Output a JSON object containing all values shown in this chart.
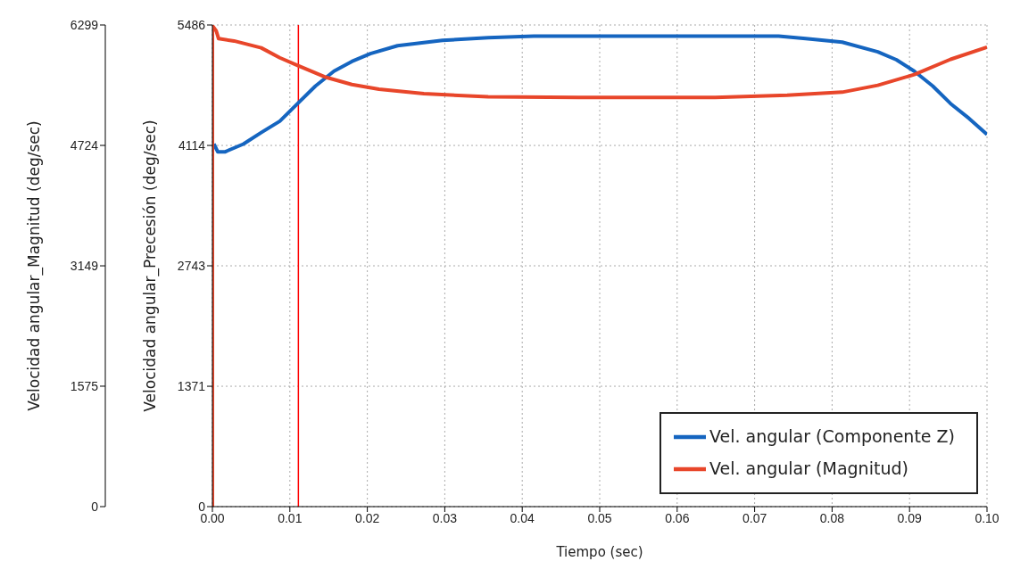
{
  "chart_data": {
    "type": "line",
    "xlabel": "Tiempo (sec)",
    "ylabel": "Velocidad angular_Magnitud (deg/sec)",
    "y2label": "Velocidad angular_Precesión (deg/sec)",
    "xlim": [
      0,
      0.1
    ],
    "xticks": [
      {
        "value": 0,
        "label": "0.00"
      },
      0.01,
      0.02,
      0.03,
      0.04,
      0.05,
      0.06,
      0.07,
      0.08,
      0.09,
      {
        "value": 0.1,
        "label": "0.10"
      }
    ],
    "ylim": [
      0,
      6299
    ],
    "yticks": [
      0,
      1575,
      3149,
      4724,
      6299
    ],
    "y2lim": [
      0,
      5486
    ],
    "y2ticks": [
      0,
      1371,
      2743,
      4114,
      5486
    ],
    "grid": true,
    "legend": "bottom right",
    "line_style": "solid",
    "marker": "none",
    "ref_lines": [
      {
        "axis": "x",
        "value": 0.0111,
        "color": "#ff0000"
      }
    ],
    "series": [
      {
        "name": "Vel. angular (Componente Z)",
        "color": "#1565c0",
        "axis": "y2",
        "x": [
          0.0002,
          0.0007,
          0.0016,
          0.004,
          0.0063,
          0.0087,
          0.011,
          0.0133,
          0.0157,
          0.018,
          0.0204,
          0.0239,
          0.0297,
          0.0356,
          0.0415,
          0.0532,
          0.0649,
          0.0731,
          0.0766,
          0.0813,
          0.0859,
          0.0883,
          0.0906,
          0.093,
          0.0953,
          0.0977,
          0.1
        ],
        "values": [
          4130,
          4040,
          4040,
          4130,
          4260,
          4390,
          4590,
          4790,
          4960,
          5070,
          5160,
          5250,
          5310,
          5340,
          5360,
          5360,
          5360,
          5360,
          5330,
          5290,
          5180,
          5090,
          4960,
          4790,
          4590,
          4420,
          4240
        ]
      },
      {
        "name": "Vel. angular (Magnitud)",
        "color": "#e8462a",
        "axis": "y",
        "x": [
          0,
          0,
          0.0005,
          0.0008,
          0.0028,
          0.0063,
          0.0087,
          0.011,
          0.0145,
          0.018,
          0.0215,
          0.0273,
          0.0356,
          0.0473,
          0.0649,
          0.0742,
          0.0813,
          0.0859,
          0.0906,
          0.0953,
          0.1
        ],
        "values": [
          0,
          6290,
          6220,
          6120,
          6090,
          6000,
          5870,
          5770,
          5620,
          5520,
          5460,
          5400,
          5360,
          5350,
          5350,
          5380,
          5420,
          5510,
          5650,
          5850,
          6010
        ]
      }
    ]
  }
}
